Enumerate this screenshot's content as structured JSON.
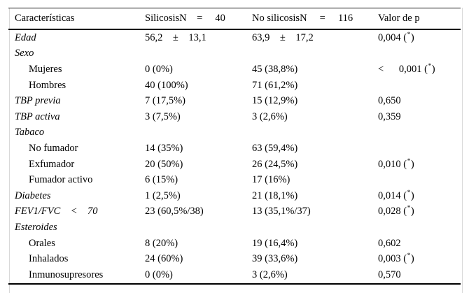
{
  "table": {
    "header": {
      "c1": "Características",
      "c2": "SilicosisN    =     40",
      "c3": "No silicosisN     =     116",
      "c4": "Valor de p"
    },
    "rows": [
      {
        "label": "Edad",
        "silicosis": "56,2    ±    13,1",
        "no_silicosis": "63,9    ±    17,2",
        "p": "0,004 (",
        "p_star": "*",
        "p_close": ")"
      },
      {
        "label": "Sexo",
        "silicosis": "",
        "no_silicosis": "",
        "p": "",
        "p_star": "",
        "p_close": ""
      },
      {
        "label": "Mujeres",
        "silicosis": "0 (0%)",
        "no_silicosis": "45 (38,8%)",
        "p": "<      0,001 (",
        "p_star": "*",
        "p_close": ")"
      },
      {
        "label": "Hombres",
        "silicosis": "40 (100%)",
        "no_silicosis": "71 (61,2%)",
        "p": "",
        "p_star": "",
        "p_close": ""
      },
      {
        "label": "TBP previa",
        "silicosis": "7 (17,5%)",
        "no_silicosis": "15 (12,9%)",
        "p": "0,650",
        "p_star": "",
        "p_close": ""
      },
      {
        "label": "TBP activa",
        "silicosis": "3 (7,5%)",
        "no_silicosis": "3 (2,6%)",
        "p": "0,359",
        "p_star": "",
        "p_close": ""
      },
      {
        "label": "Tabaco",
        "silicosis": "",
        "no_silicosis": "",
        "p": "",
        "p_star": "",
        "p_close": ""
      },
      {
        "label": "No fumador",
        "silicosis": "14 (35%)",
        "no_silicosis": "63 (59,4%)",
        "p": "",
        "p_star": "",
        "p_close": ""
      },
      {
        "label": "Exfumador",
        "silicosis": "20 (50%)",
        "no_silicosis": "26 (24,5%)",
        "p": "0,010 (",
        "p_star": "*",
        "p_close": ")"
      },
      {
        "label": "Fumador activo",
        "silicosis": "6 (15%)",
        "no_silicosis": "17 (16%)",
        "p": "",
        "p_star": "",
        "p_close": ""
      },
      {
        "label": "Diabetes",
        "silicosis": "1 (2,5%)",
        "no_silicosis": "21 (18,1%)",
        "p": "0,014 (",
        "p_star": "*",
        "p_close": ")"
      },
      {
        "label": "FEV1/FVC    <    70",
        "silicosis": "23 (60,5%/38)",
        "no_silicosis": "13 (35,1%/37)",
        "p": "0,028 (",
        "p_star": "*",
        "p_close": ")"
      },
      {
        "label": "Esteroides",
        "silicosis": "",
        "no_silicosis": "",
        "p": "",
        "p_star": "",
        "p_close": ""
      },
      {
        "label": "Orales",
        "silicosis": "8 (20%)",
        "no_silicosis": "19 (16,4%)",
        "p": "0,602",
        "p_star": "",
        "p_close": ""
      },
      {
        "label": "Inhalados",
        "silicosis": "24 (60%)",
        "no_silicosis": "39 (33,6%)",
        "p": "0,003 (",
        "p_star": "*",
        "p_close": ")"
      },
      {
        "label": "Inmunosupresores",
        "silicosis": "0 (0%)",
        "no_silicosis": "3 (2,6%)",
        "p": "0,570",
        "p_star": "",
        "p_close": ""
      }
    ]
  }
}
